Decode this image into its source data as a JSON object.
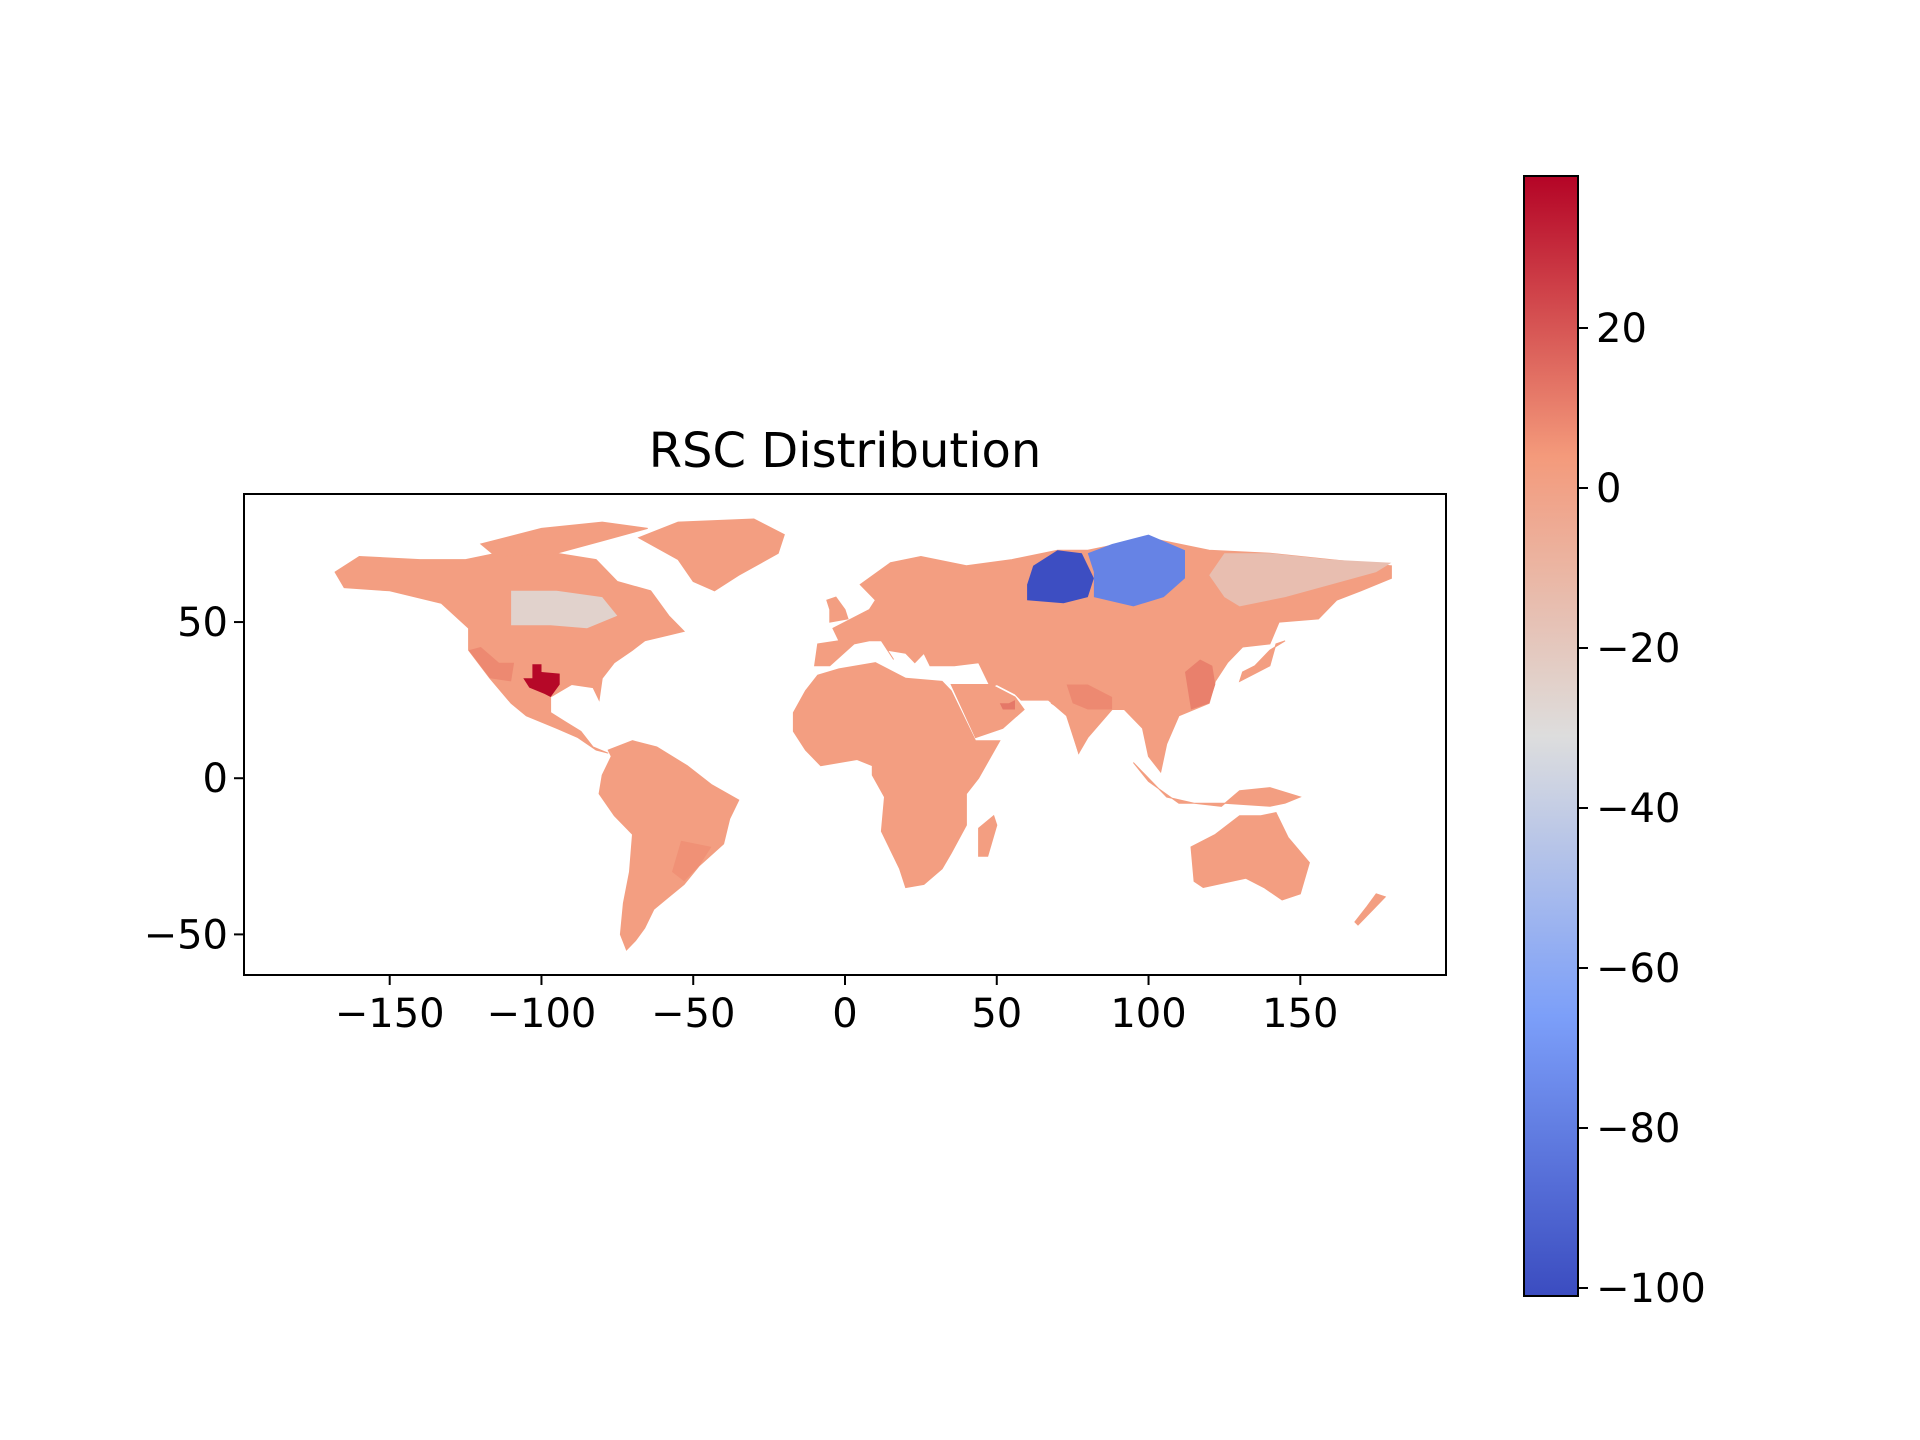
{
  "chart_data": {
    "type": "choropleth-map",
    "title": "RSC Distribution",
    "x_ticks": [
      -150,
      -100,
      -50,
      0,
      50,
      100,
      150
    ],
    "x_tick_labels": [
      "−150",
      "−100",
      "−50",
      "0",
      "50",
      "100",
      "150"
    ],
    "y_ticks": [
      50,
      0,
      -50
    ],
    "y_tick_labels": [
      "50",
      "0",
      "−50"
    ],
    "xlim": [
      -198,
      198
    ],
    "ylim": [
      -63,
      91
    ],
    "colorbar": {
      "colormap": "coolwarm",
      "vmin": -101,
      "vmax": 39,
      "ticks": [
        20,
        0,
        -20,
        -40,
        -60,
        -80,
        -100
      ],
      "tick_labels": [
        "20",
        "0",
        "−20",
        "−40",
        "−60",
        "−80",
        "−100"
      ]
    },
    "highlighted_regions": [
      {
        "region": "Texas (USA)",
        "value": 38
      },
      {
        "region": "Arabian Peninsula (UAE area)",
        "value": 12
      },
      {
        "region": "Eastern China coast",
        "value": 10
      },
      {
        "region": "Northern India",
        "value": 8
      },
      {
        "region": "South-western USA",
        "value": 8
      },
      {
        "region": "Southern Brazil",
        "value": 6
      },
      {
        "region": "Central Canada",
        "value": -25
      },
      {
        "region": "Eastern Siberia",
        "value": -15
      },
      {
        "region": "West Siberia (Yamalo-Nenets area)",
        "value": -100
      },
      {
        "region": "Central Siberia (Krasnoyarsk area)",
        "value": -78
      }
    ],
    "base_value": 2,
    "grid": false,
    "legend": "colorbar at right"
  }
}
